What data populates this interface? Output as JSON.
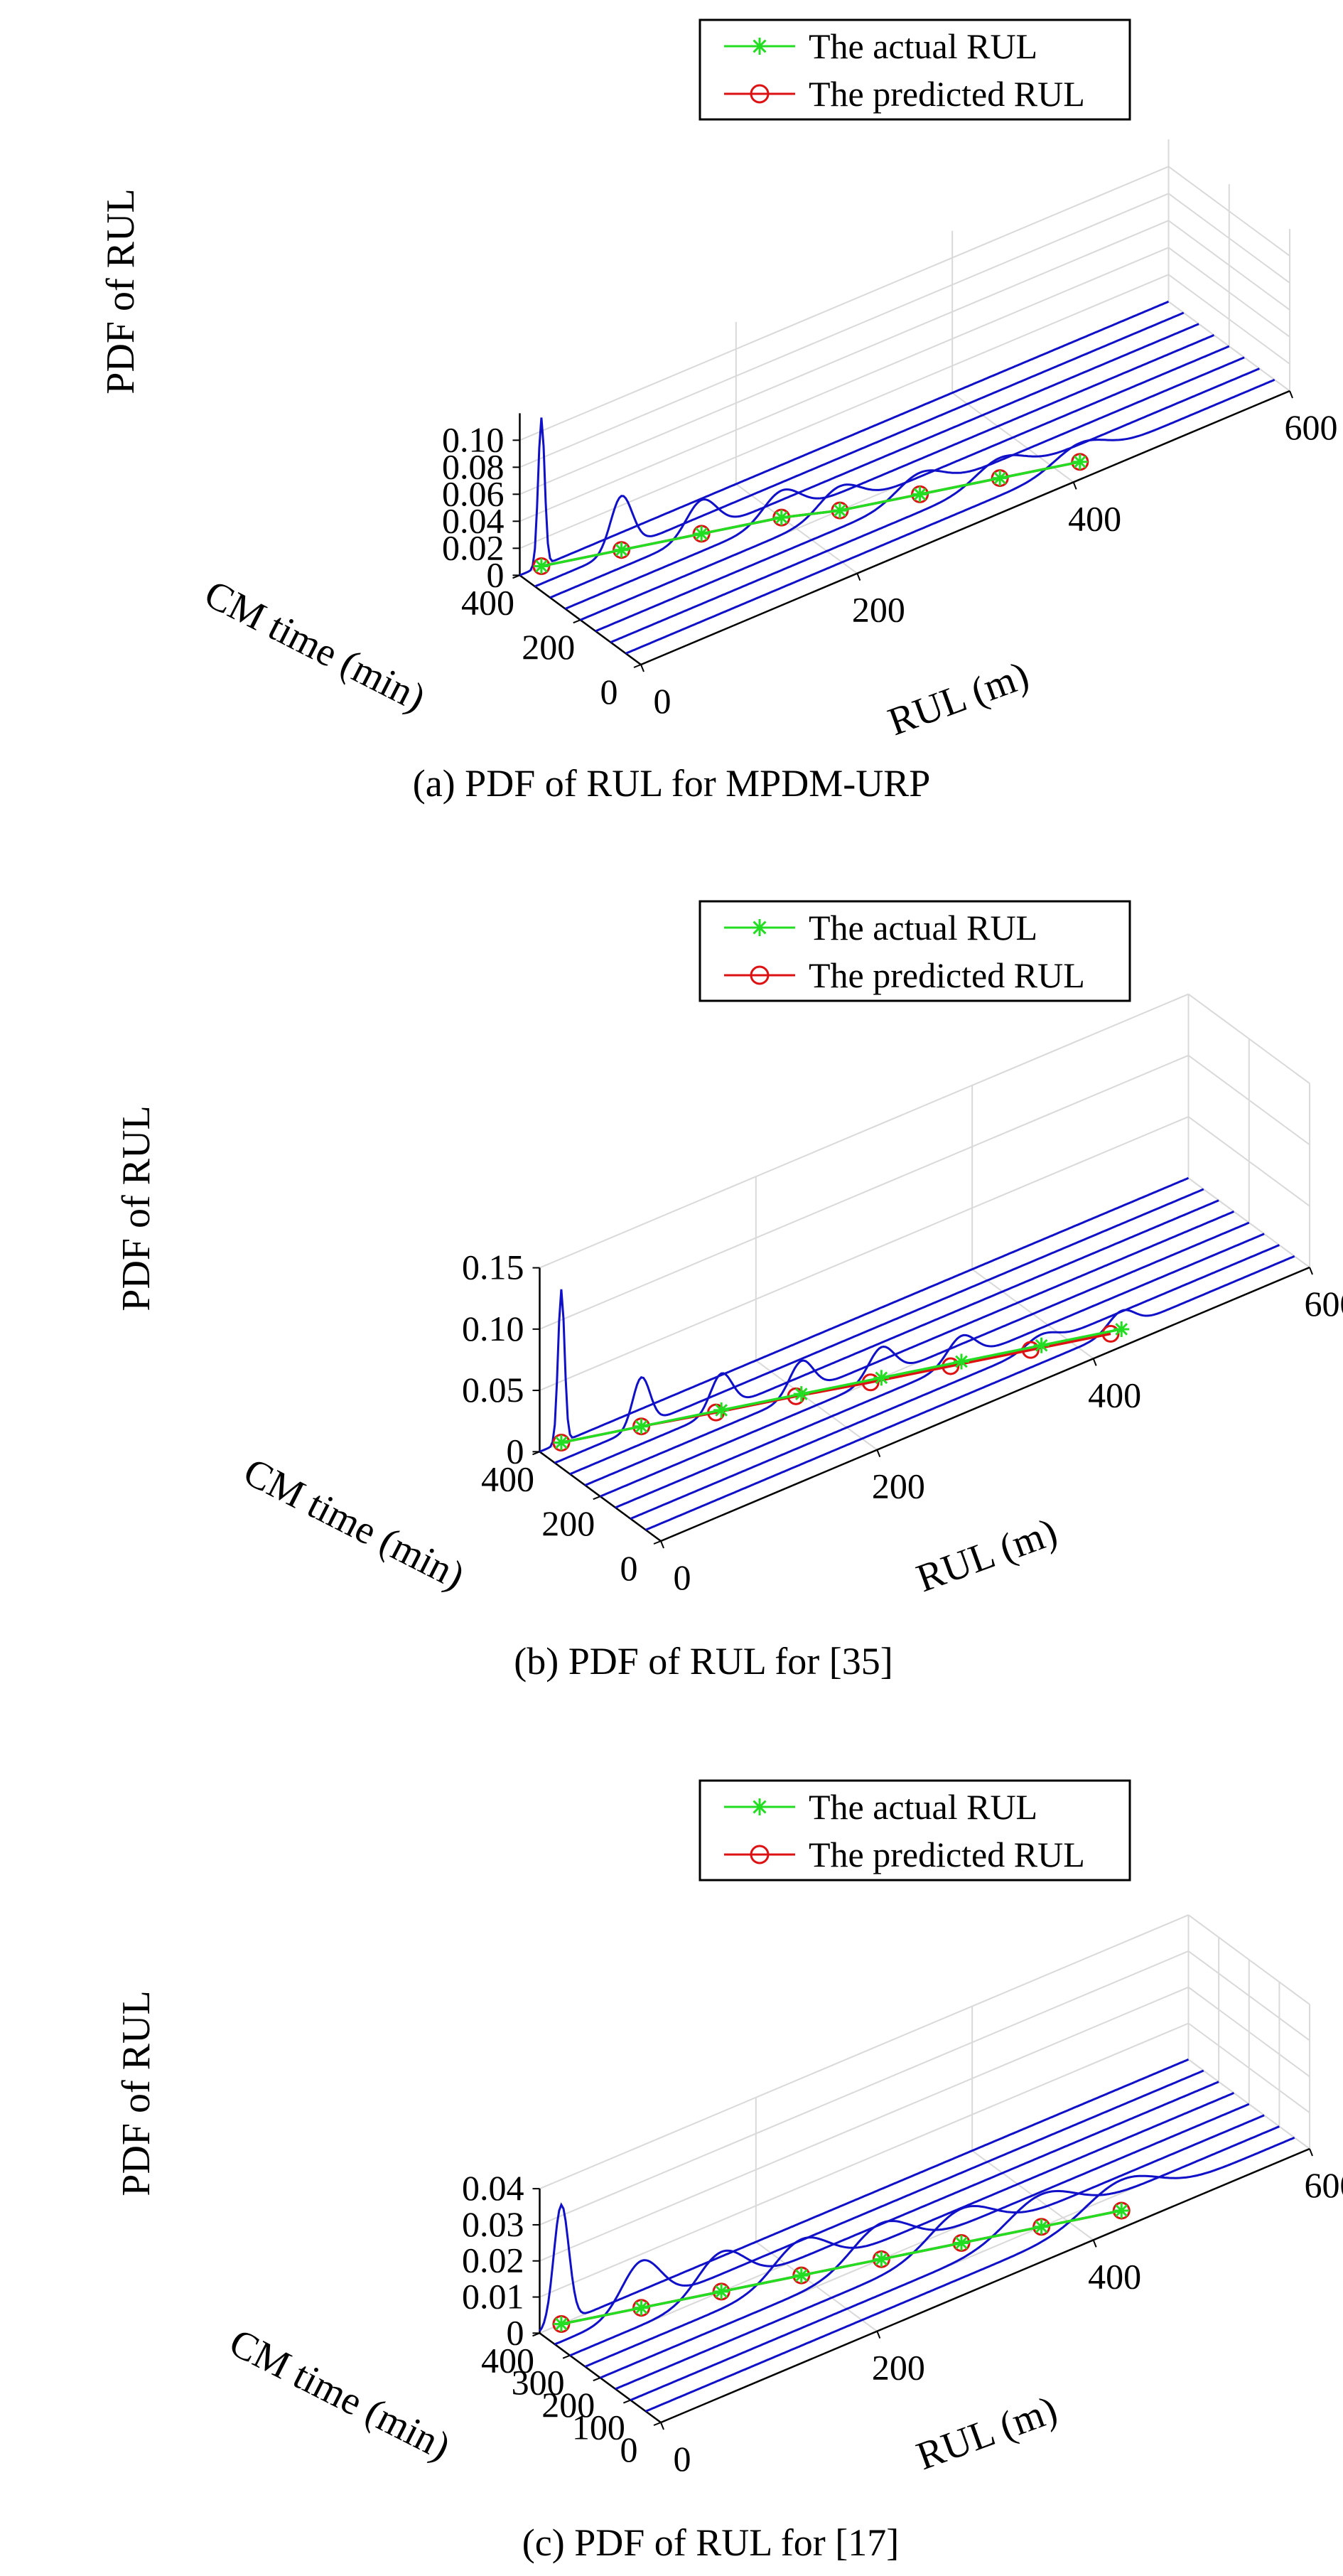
{
  "chart_data": [
    {
      "type": "line",
      "caption": "(a) PDF of RUL for MPDM-URP",
      "xlabel": "RUL (m)",
      "ylabel": "CM time (min)",
      "zlabel": "PDF of RUL",
      "xlim": [
        0,
        600
      ],
      "ylim": [
        0,
        400
      ],
      "zlim": [
        0,
        0.12
      ],
      "x_ticks": [
        "0",
        "200",
        "400",
        "600"
      ],
      "y_ticks": [
        "0",
        "200",
        "400"
      ],
      "z_ticks": [
        "0",
        "0.02",
        "0.04",
        "0.06",
        "0.08",
        "0.10"
      ],
      "grid": true,
      "legend_position": "top-right",
      "legend": [
        "The actual RUL",
        "The predicted RUL"
      ],
      "cm_times": [
        400,
        350,
        300,
        250,
        200,
        150,
        100,
        50
      ],
      "actual_rul": [
        20,
        80,
        140,
        200,
        240,
        300,
        360,
        420
      ],
      "predicted_rul": [
        20,
        80,
        140,
        200,
        240,
        300,
        360,
        420
      ],
      "pdf_peak": [
        0.11,
        0.04,
        0.025,
        0.02,
        0.018,
        0.016,
        0.015,
        0.014
      ],
      "pdf_width": [
        3,
        10,
        14,
        17,
        19,
        21,
        22,
        23
      ]
    },
    {
      "type": "line",
      "caption": "(b) PDF of RUL for [35]",
      "xlabel": "RUL (m)",
      "ylabel": "CM time (min)",
      "zlabel": "PDF of RUL",
      "xlim": [
        0,
        600
      ],
      "ylim": [
        0,
        400
      ],
      "zlim": [
        0,
        0.15
      ],
      "x_ticks": [
        "0",
        "200",
        "400",
        "600"
      ],
      "y_ticks": [
        "0",
        "200",
        "400"
      ],
      "z_ticks": [
        "0",
        "0.05",
        "0.10",
        "0.15"
      ],
      "grid": true,
      "legend_position": "top-right",
      "legend": [
        "The actual RUL",
        "The predicted RUL"
      ],
      "cm_times": [
        400,
        350,
        300,
        250,
        200,
        150,
        100,
        50
      ],
      "actual_rul": [
        20,
        80,
        140,
        200,
        260,
        320,
        380,
        440
      ],
      "predicted_rul": [
        20,
        80,
        135,
        195,
        250,
        310,
        370,
        430
      ],
      "pdf_peak": [
        0.125,
        0.04,
        0.03,
        0.027,
        0.025,
        0.021,
        0.009,
        0.015
      ],
      "pdf_width": [
        3,
        8,
        10,
        11,
        12,
        13,
        14,
        12
      ]
    },
    {
      "type": "line",
      "caption": "(c) PDF of RUL for [17]",
      "xlabel": "RUL (m)",
      "ylabel": "CM time (min)",
      "zlabel": "PDF of RUL",
      "xlim": [
        0,
        600
      ],
      "ylim": [
        0,
        400
      ],
      "zlim": [
        0,
        0.04
      ],
      "x_ticks": [
        "0",
        "200",
        "400",
        "600"
      ],
      "y_ticks": [
        "0",
        "100",
        "200",
        "300",
        "400"
      ],
      "z_ticks": [
        "0",
        "0.01",
        "0.02",
        "0.03",
        "0.04"
      ],
      "grid": true,
      "legend_position": "top-right",
      "legend": [
        "The actual RUL",
        "The predicted RUL"
      ],
      "cm_times": [
        400,
        350,
        300,
        250,
        200,
        150,
        100,
        50
      ],
      "actual_rul": [
        20,
        80,
        140,
        200,
        260,
        320,
        380,
        440
      ],
      "predicted_rul": [
        20,
        80,
        140,
        200,
        260,
        320,
        380,
        440
      ],
      "pdf_peak": [
        0.033,
        0.013,
        0.011,
        0.01,
        0.01,
        0.0095,
        0.009,
        0.0085
      ],
      "pdf_width": [
        7,
        18,
        22,
        25,
        27,
        29,
        31,
        33
      ]
    }
  ],
  "colors": {
    "pdf_curve": "#1010c8",
    "actual": "#22dd22",
    "predicted": "#dd1111",
    "grid": "#d9d9d9",
    "axis": "#000000"
  }
}
